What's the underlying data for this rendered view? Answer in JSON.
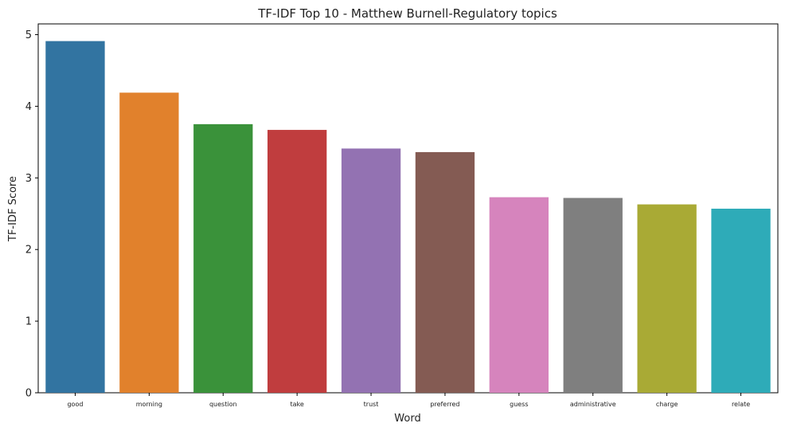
{
  "chart_data": {
    "type": "bar",
    "title": "TF-IDF Top 10 - Matthew Burnell-Regulatory topics",
    "xlabel": "Word",
    "ylabel": "TF-IDF Score",
    "categories": [
      "good",
      "morning",
      "question",
      "take",
      "trust",
      "preferred",
      "guess",
      "administrative",
      "charge",
      "relate"
    ],
    "values": [
      4.91,
      4.19,
      3.75,
      3.67,
      3.41,
      3.36,
      2.73,
      2.72,
      2.63,
      2.57
    ],
    "colors": [
      "#3274a1",
      "#e1812c",
      "#3a923a",
      "#c03d3e",
      "#9372b2",
      "#845b53",
      "#d684bd",
      "#7f7f7f",
      "#a9aa35",
      "#2eabb8"
    ],
    "ylim": [
      0,
      5.15
    ],
    "yticks": [
      0,
      1,
      2,
      3,
      4,
      5
    ],
    "grid": false,
    "legend": "none"
  }
}
